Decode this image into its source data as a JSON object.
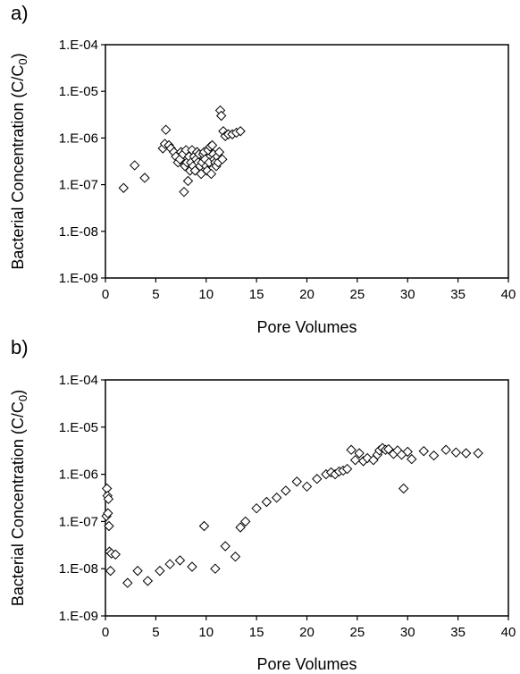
{
  "chart_data": [
    {
      "panel_label": "a)",
      "type": "scatter",
      "marker": "open-diamond",
      "xlabel": "Pore Volumes",
      "ylabel": "Bacterial Concentration (C/C",
      "ylabel_subscript": "0",
      "ylabel_suffix": ")",
      "xlim": [
        0,
        40
      ],
      "ylim": [
        1e-09,
        0.0001
      ],
      "yscale": "log",
      "grid": false,
      "x_ticks": [
        "0",
        "5",
        "10",
        "15",
        "20",
        "25",
        "30",
        "35",
        "40"
      ],
      "y_ticks": [
        "1.E-09",
        "1.E-08",
        "1.E-07",
        "1.E-06",
        "1.E-05",
        "1.E-04"
      ],
      "x": [
        1.8,
        2.9,
        3.9,
        5.7,
        5.9,
        6.0,
        6.3,
        6.5,
        6.8,
        7.0,
        7.2,
        7.4,
        7.5,
        7.7,
        7.8,
        7.9,
        8.0,
        8.1,
        8.2,
        8.3,
        8.4,
        8.5,
        8.6,
        8.7,
        8.8,
        8.9,
        9.0,
        9.1,
        9.2,
        9.3,
        9.4,
        9.5,
        9.6,
        9.7,
        9.8,
        9.9,
        10.0,
        10.1,
        10.2,
        10.3,
        10.4,
        10.5,
        10.6,
        10.7,
        10.8,
        10.9,
        11.0,
        11.1,
        11.2,
        11.3,
        11.4,
        11.5,
        11.6,
        11.7,
        11.9,
        12.2,
        12.6,
        13.0,
        13.4
      ],
      "y": [
        8.5e-08,
        2.6e-07,
        1.4e-07,
        6e-07,
        7.5e-07,
        1.5e-06,
        7e-07,
        6e-07,
        5e-07,
        4e-07,
        3e-07,
        3.5e-07,
        5e-07,
        4.5e-07,
        7e-08,
        2.5e-07,
        5.5e-07,
        3e-07,
        1.2e-07,
        4e-07,
        2e-07,
        3e-07,
        5.5e-07,
        2.5e-07,
        4e-07,
        2e-07,
        3.5e-07,
        5e-07,
        3e-07,
        4.5e-07,
        2.5e-07,
        1.7e-07,
        3e-07,
        4.5e-07,
        5e-07,
        3.5e-07,
        2.5e-07,
        2e-07,
        5.5e-07,
        3e-07,
        6.5e-07,
        1.7e-07,
        7e-07,
        4.5e-07,
        3.5e-07,
        3e-07,
        2.5e-07,
        4e-07,
        3e-07,
        5e-07,
        3.9e-06,
        3e-06,
        3.5e-07,
        1.4e-06,
        1.1e-06,
        1.2e-06,
        1.2e-06,
        1.3e-06,
        1.4e-06
      ]
    },
    {
      "panel_label": "b)",
      "type": "scatter",
      "marker": "open-diamond",
      "xlabel": "Pore Volumes",
      "ylabel": "Bacterial Concentration (C/C",
      "ylabel_subscript": "0",
      "ylabel_suffix": ")",
      "xlim": [
        0,
        40
      ],
      "ylim": [
        1e-09,
        0.0001
      ],
      "yscale": "log",
      "grid": false,
      "x_ticks": [
        "0",
        "5",
        "10",
        "15",
        "20",
        "25",
        "30",
        "35",
        "40"
      ],
      "y_ticks": [
        "1.E-09",
        "1.E-08",
        "1.E-07",
        "1.E-06",
        "1.E-05",
        "1.E-04"
      ],
      "x": [
        0.1,
        0.15,
        0.2,
        0.25,
        0.3,
        0.35,
        0.4,
        0.5,
        0.6,
        1.0,
        2.2,
        3.2,
        4.2,
        5.4,
        6.4,
        7.4,
        8.6,
        9.8,
        10.9,
        11.9,
        12.9,
        13.4,
        13.9,
        15.0,
        16.0,
        17.0,
        17.9,
        19.0,
        20.0,
        21.0,
        21.9,
        22.4,
        22.8,
        23.2,
        23.6,
        24.0,
        24.4,
        24.8,
        25.2,
        25.6,
        26.0,
        26.6,
        27.0,
        27.2,
        27.5,
        27.8,
        28.1,
        28.6,
        29.0,
        29.4,
        29.6,
        30.0,
        30.4,
        31.6,
        32.6,
        33.8,
        34.8,
        35.8,
        37.0
      ],
      "y": [
        1.3e-07,
        5e-07,
        3.5e-07,
        1.5e-07,
        3e-07,
        8e-08,
        2.3e-08,
        9e-09,
        2.1e-08,
        2e-08,
        5e-09,
        9e-09,
        5.5e-09,
        9e-09,
        1.25e-08,
        1.5e-08,
        1.1e-08,
        8e-08,
        1e-08,
        3e-08,
        1.8e-08,
        7.5e-08,
        1e-07,
        1.9e-07,
        2.6e-07,
        3.2e-07,
        4.5e-07,
        7e-07,
        5.5e-07,
        8e-07,
        1e-06,
        1.1e-06,
        1e-06,
        1.15e-06,
        1.2e-06,
        1.3e-06,
        3.3e-06,
        2e-06,
        2.8e-06,
        1.9e-06,
        2.2e-06,
        2e-06,
        2.6e-06,
        3.2e-06,
        3.6e-06,
        3.3e-06,
        3.4e-06,
        2.7e-06,
        3.2e-06,
        2.6e-06,
        5e-07,
        3e-06,
        2.1e-06,
        3.1e-06,
        2.5e-06,
        3.3e-06,
        2.9e-06,
        2.8e-06,
        2.8e-06
      ]
    }
  ]
}
